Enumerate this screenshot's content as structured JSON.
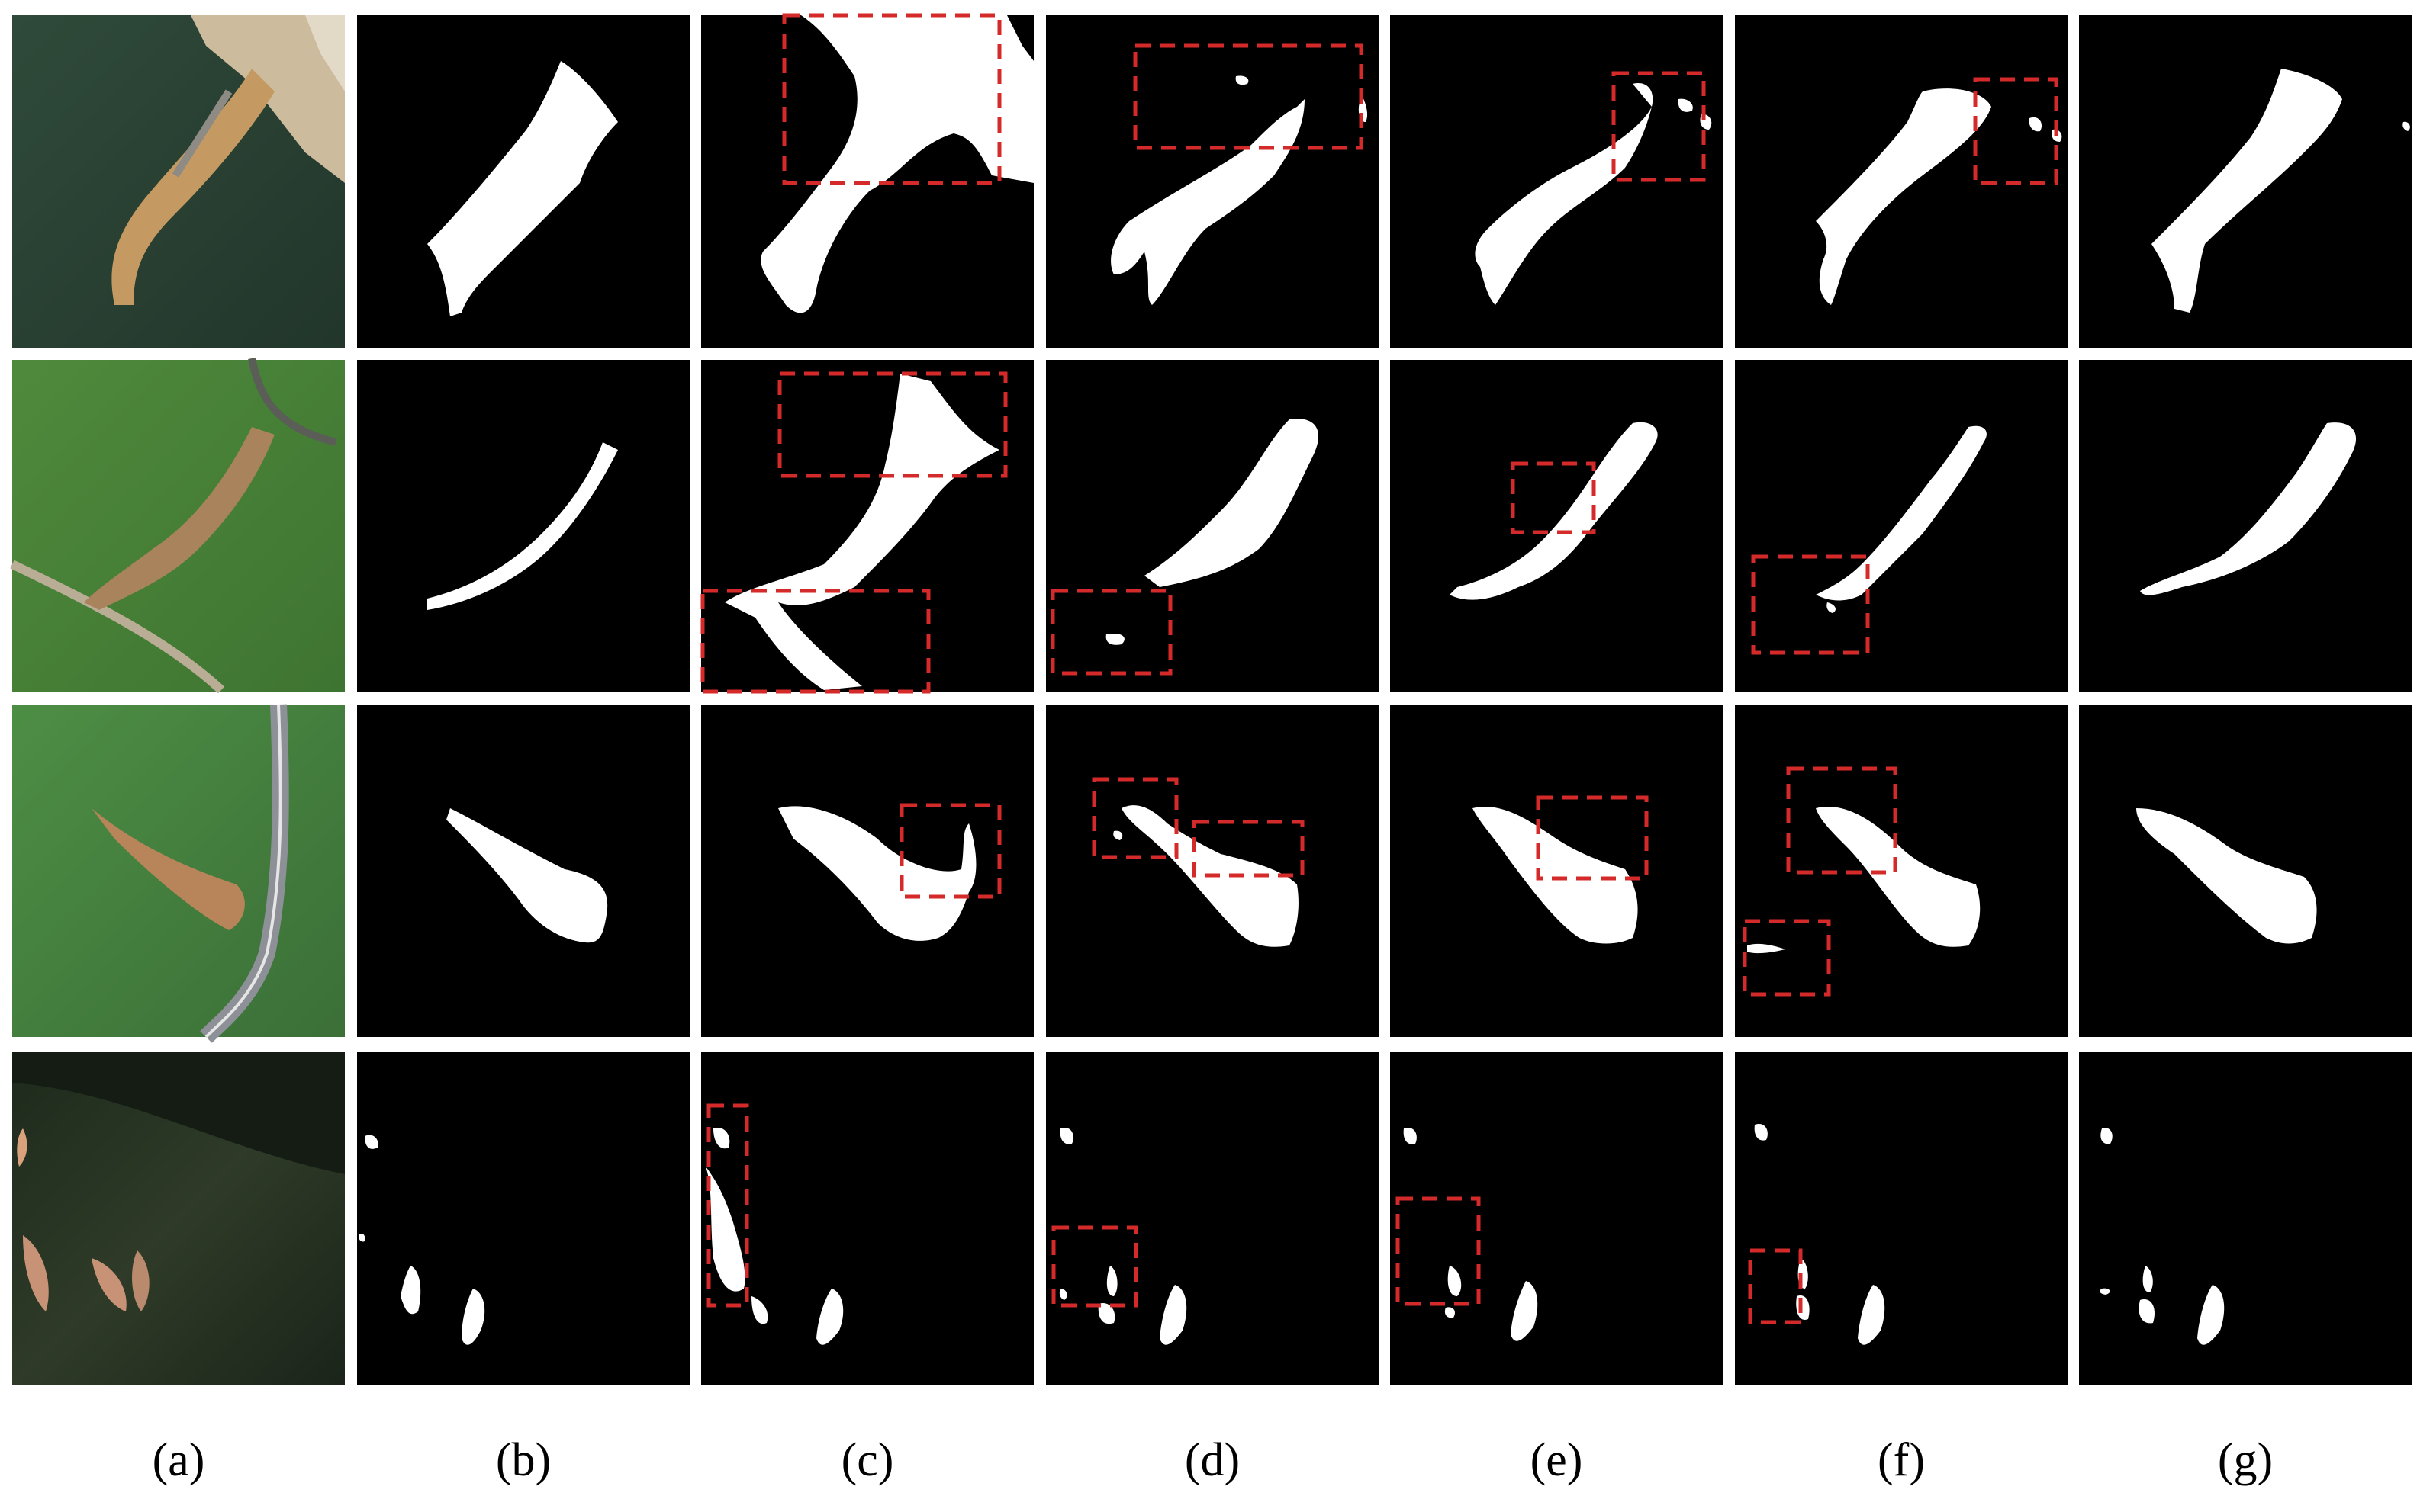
{
  "figure": {
    "columns": [
      "(a)",
      "(b)",
      "(c)",
      "(d)",
      "(e)",
      "(f)",
      "(g)"
    ],
    "column_content": [
      "remote-sensing-image",
      "segmentation-mask",
      "segmentation-mask",
      "segmentation-mask",
      "segmentation-mask",
      "segmentation-mask",
      "segmentation-mask"
    ],
    "rows": 4,
    "colors": {
      "background": "#ffffff",
      "mask_background": "#000000",
      "mask_foreground": "#ffffff",
      "highlight_box": "#d42a2a"
    }
  }
}
